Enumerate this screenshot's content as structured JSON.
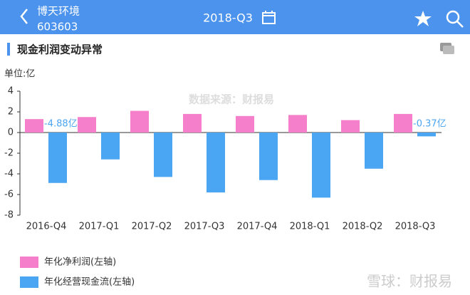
{
  "header": {
    "name": "博天环境",
    "code": "603603",
    "period": "2018-Q3"
  },
  "section_title": "现金利润变动异常",
  "footer_watermark": "雪球：财报易",
  "chart_data": {
    "type": "bar",
    "y_unit_label": "单位:亿",
    "watermark": "数据来源：财报易",
    "categories": [
      "2016-Q4",
      "2017-Q1",
      "2017-Q2",
      "2017-Q3",
      "2017-Q4",
      "2018-Q1",
      "2018-Q2",
      "2018-Q3"
    ],
    "series": [
      {
        "name": "年化净利润(左轴)",
        "color": "#f57fcb",
        "values": [
          1.3,
          1.5,
          2.1,
          1.8,
          1.6,
          1.7,
          1.2,
          1.8
        ]
      },
      {
        "name": "年化经营现金流(左轴)",
        "color": "#4aa5f2",
        "values": [
          -4.88,
          -2.6,
          -4.3,
          -5.8,
          -4.6,
          -6.3,
          -3.5,
          -0.37
        ],
        "value_labels": [
          "-4.88亿",
          null,
          null,
          null,
          null,
          null,
          null,
          "-0.37亿"
        ]
      }
    ],
    "ylim": [
      -8,
      4
    ],
    "yticks": [
      -8,
      -6,
      -4,
      -2,
      0,
      2,
      4
    ],
    "legend": "bottom-left"
  }
}
